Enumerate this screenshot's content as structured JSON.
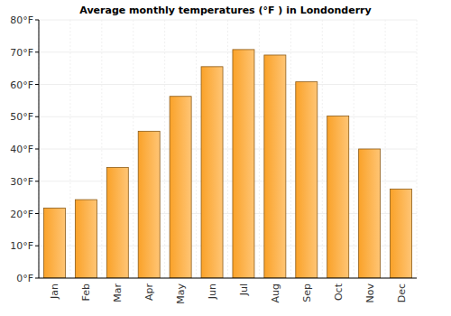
{
  "chart_data": {
    "type": "bar",
    "title": "Average monthly temperatures (°F ) in Londonderry",
    "categories": [
      "Jan",
      "Feb",
      "Mar",
      "Apr",
      "May",
      "Jun",
      "Jul",
      "Aug",
      "Sep",
      "Oct",
      "Nov",
      "Dec"
    ],
    "values": [
      21.7,
      24.3,
      34.3,
      45.5,
      56.3,
      65.5,
      70.8,
      69.1,
      60.8,
      50.2,
      40.0,
      27.6
    ],
    "color": "#ffa52a",
    "ylim": [
      0,
      80
    ],
    "yticks": [
      {
        "value": 0,
        "label": "0°F"
      },
      {
        "value": 10,
        "label": "10°F"
      },
      {
        "value": 20,
        "label": "20°F"
      },
      {
        "value": 30,
        "label": "30°F"
      },
      {
        "value": 40,
        "label": "40°F"
      },
      {
        "value": 50,
        "label": "50°F"
      },
      {
        "value": 60,
        "label": "60°F"
      },
      {
        "value": 70,
        "label": "70°F"
      },
      {
        "value": 80,
        "label": "80°F"
      }
    ],
    "grid": true
  }
}
